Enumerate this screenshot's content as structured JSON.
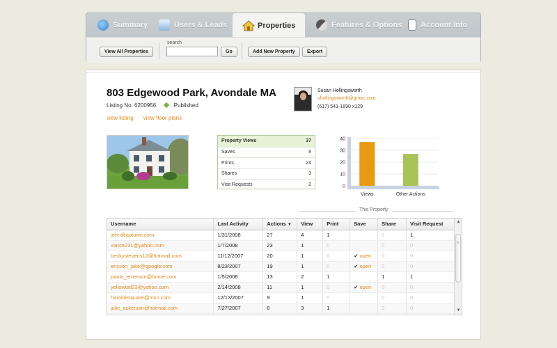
{
  "nav": {
    "tabs": [
      {
        "label": "Summary",
        "icon": "summary-icon"
      },
      {
        "label": "Users & Leads",
        "icon": "users-icon"
      },
      {
        "label": "Properties",
        "icon": "house-icon"
      },
      {
        "label": "Features & Options",
        "icon": "features-icon"
      },
      {
        "label": "Account Info",
        "icon": "account-icon"
      }
    ],
    "active_tab": "Properties"
  },
  "toolbar": {
    "view_all_label": "View All Properties",
    "search_label": "search",
    "search_value": "",
    "go_label": "Go",
    "add_new_label": "Add New Property",
    "export_label": "Export"
  },
  "property": {
    "title": "803 Edgewood Park, Avondale MA",
    "listing_label": "Listing No.",
    "listing_no": "6200956",
    "status": "Published",
    "view_listing": "view listing",
    "view_floor_plans": "view floor plans"
  },
  "agent": {
    "name": "Susan Hollingsworth",
    "email": "shollingsworth@gmac.com",
    "phone": "(617) 541-1890 x129"
  },
  "stats": [
    {
      "label": "Property Views",
      "value": "37"
    },
    {
      "label": "Saves",
      "value": "8"
    },
    {
      "label": "Prints",
      "value": "24"
    },
    {
      "label": "Shares",
      "value": "3"
    },
    {
      "label": "Visit Requests",
      "value": "2"
    }
  ],
  "chart_data": {
    "type": "bar",
    "categories": [
      "Views",
      "Other Actions"
    ],
    "values": [
      37,
      27
    ],
    "ylim": [
      0,
      40
    ],
    "yticks": [
      0,
      10,
      20,
      30,
      40
    ],
    "colors": [
      "#e89a12",
      "#a9c25a"
    ],
    "grid": true
  },
  "table": {
    "group_label": "This Property",
    "headers": [
      "Username",
      "Last Activity",
      "Actions",
      "View",
      "Print",
      "Save",
      "Share",
      "Visit Request"
    ],
    "sort_indicator": "▼",
    "rows": [
      [
        "john@aptown.com",
        "1/31/2008",
        "27",
        "4",
        "1",
        "",
        "0",
        "1"
      ],
      [
        "vance231@yahoo.com",
        "1/7/2008",
        "23",
        "1",
        "0",
        "",
        "0",
        "0"
      ],
      [
        "beckystevens12@hotmail.com",
        "11/12/2007",
        "20",
        "1",
        "0",
        "open",
        "0",
        "0"
      ],
      [
        "ericson_jake@google.com",
        "8/23/2007",
        "19",
        "1",
        "0",
        "open",
        "0",
        "0"
      ],
      [
        "paula_emerson@home.com",
        "1/5/2008",
        "13",
        "2",
        "1",
        "",
        "1",
        "1"
      ],
      [
        "yellowtail23@yahoo.com",
        "2/14/2008",
        "11",
        "1",
        "0",
        "open",
        "0",
        "0"
      ],
      [
        "haroldesquare@msn.com",
        "12/13/2007",
        "9",
        "1",
        "0",
        "",
        "0",
        "0"
      ],
      [
        "julie_ackerson@hotmail.com",
        "7/27/2007",
        "6",
        "3",
        "1",
        "",
        "0",
        "0"
      ]
    ]
  }
}
